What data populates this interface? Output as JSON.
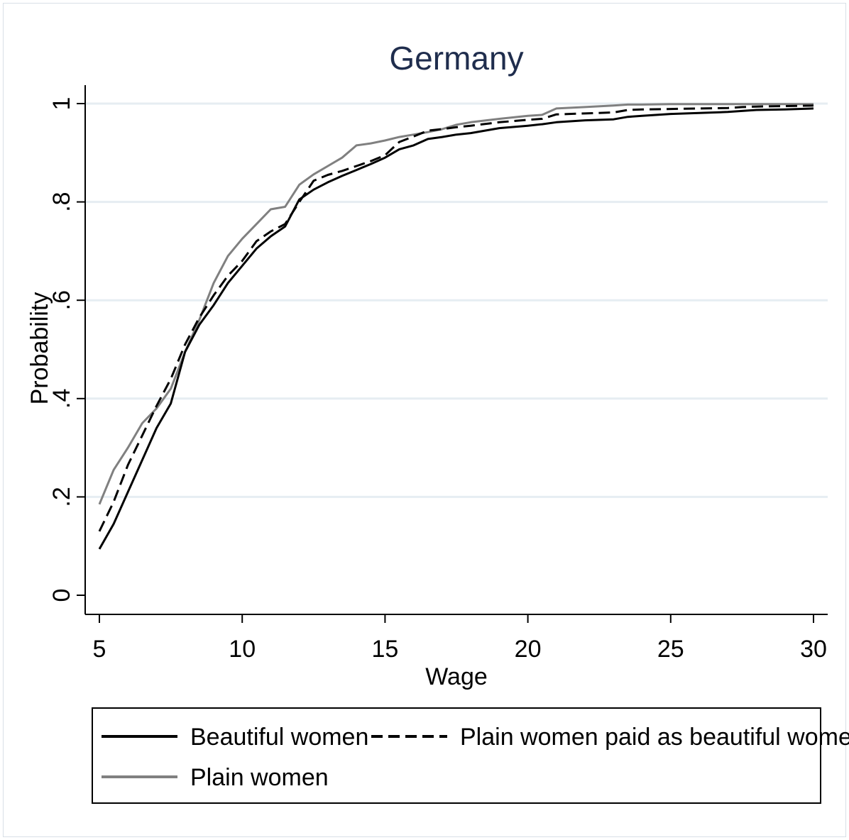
{
  "chart_data": {
    "type": "line",
    "title": "Germany",
    "xlabel": "Wage",
    "ylabel": "Probability",
    "xlim": [
      5,
      30
    ],
    "ylim": [
      0,
      1
    ],
    "x_ticks": [
      5,
      10,
      15,
      20,
      25,
      30
    ],
    "x_tick_labels": [
      "5",
      "10",
      "15",
      "20",
      "25",
      "30"
    ],
    "y_ticks": [
      0,
      0.2,
      0.4,
      0.6,
      0.8,
      1
    ],
    "y_tick_labels": [
      "0",
      ".2",
      ".4",
      ".6",
      ".8",
      "1"
    ],
    "grid": true,
    "legend_position": "bottom",
    "colors": {
      "beautiful": "#000000",
      "plain_paid": "#000000",
      "plain": "#808080",
      "grid": "#e6edf2",
      "title": "#1f2d4d"
    },
    "series": [
      {
        "name": "Beautiful women",
        "style": "solid",
        "x": [
          5,
          5.5,
          6,
          6.5,
          7,
          7.5,
          8,
          8.5,
          9,
          9.5,
          10,
          10.5,
          11,
          11.5,
          12,
          12.5,
          13,
          13.5,
          14,
          14.5,
          15,
          15.5,
          16,
          16.5,
          17,
          17.5,
          18,
          19,
          20,
          20.5,
          21,
          22,
          23,
          23.5,
          24,
          25,
          26,
          27,
          27.5,
          28,
          29,
          30
        ],
        "y": [
          0.094,
          0.145,
          0.21,
          0.275,
          0.34,
          0.39,
          0.495,
          0.55,
          0.59,
          0.635,
          0.67,
          0.705,
          0.73,
          0.75,
          0.805,
          0.825,
          0.84,
          0.853,
          0.865,
          0.877,
          0.89,
          0.907,
          0.915,
          0.928,
          0.932,
          0.937,
          0.94,
          0.95,
          0.955,
          0.958,
          0.962,
          0.966,
          0.968,
          0.973,
          0.975,
          0.979,
          0.981,
          0.983,
          0.985,
          0.987,
          0.988,
          0.99
        ]
      },
      {
        "name": "Plain women paid as beautiful women",
        "style": "dashed",
        "x": [
          5,
          5.5,
          6,
          6.5,
          7,
          7.5,
          8,
          8.5,
          9,
          9.5,
          10,
          10.5,
          11,
          11.5,
          12,
          12.5,
          13,
          13.5,
          14,
          14.5,
          15,
          15.5,
          16,
          16.5,
          17,
          17.5,
          18,
          19,
          20,
          20.5,
          21,
          22,
          23,
          23.5,
          24,
          25,
          26,
          27,
          27.5,
          28,
          29,
          30
        ],
        "y": [
          0.13,
          0.19,
          0.265,
          0.325,
          0.385,
          0.44,
          0.51,
          0.565,
          0.61,
          0.65,
          0.68,
          0.72,
          0.74,
          0.755,
          0.8,
          0.843,
          0.855,
          0.863,
          0.873,
          0.883,
          0.895,
          0.922,
          0.933,
          0.945,
          0.948,
          0.952,
          0.955,
          0.962,
          0.967,
          0.969,
          0.978,
          0.98,
          0.982,
          0.987,
          0.988,
          0.989,
          0.99,
          0.991,
          0.993,
          0.994,
          0.995,
          0.996
        ]
      },
      {
        "name": "Plain women",
        "style": "solid",
        "x": [
          5,
          5.5,
          6,
          6.5,
          7,
          7.5,
          8,
          8.5,
          9,
          9.5,
          10,
          10.5,
          11,
          11.5,
          12,
          12.5,
          13,
          13.5,
          14,
          14.5,
          15,
          15.5,
          16,
          16.5,
          17,
          17.5,
          18,
          19,
          20,
          20.5,
          21,
          22,
          23,
          23.5,
          24,
          25,
          26,
          27,
          27.5,
          28,
          29,
          30
        ],
        "y": [
          0.185,
          0.255,
          0.3,
          0.35,
          0.38,
          0.42,
          0.495,
          0.56,
          0.635,
          0.69,
          0.725,
          0.755,
          0.785,
          0.79,
          0.835,
          0.856,
          0.873,
          0.89,
          0.915,
          0.919,
          0.925,
          0.932,
          0.937,
          0.942,
          0.948,
          0.957,
          0.962,
          0.969,
          0.975,
          0.977,
          0.99,
          0.993,
          0.996,
          0.998,
          0.998,
          0.999,
          0.999,
          0.999,
          0.999,
          0.999,
          0.999,
          0.999
        ]
      }
    ]
  }
}
